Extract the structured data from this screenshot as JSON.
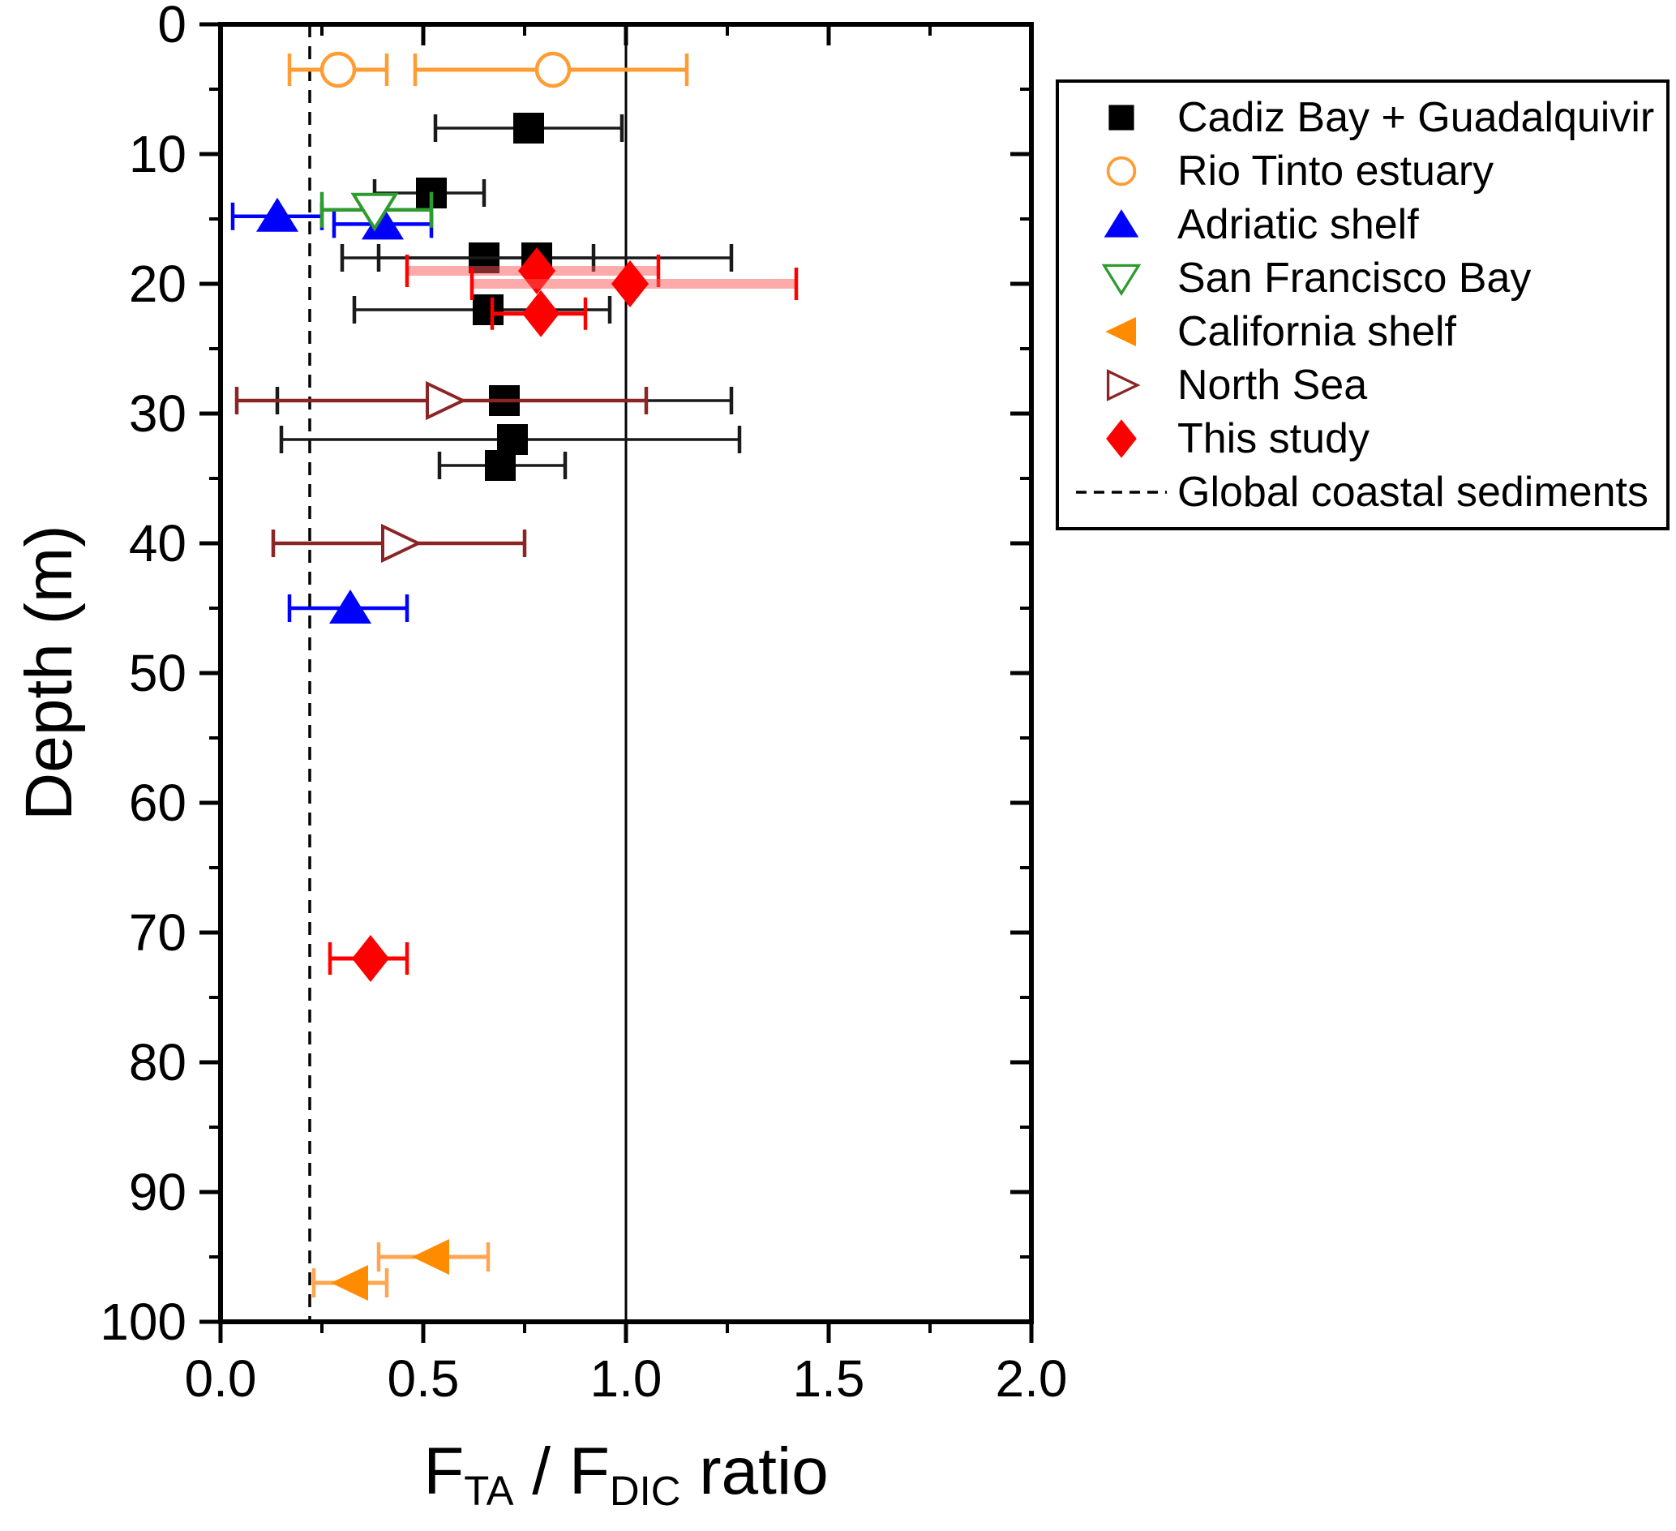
{
  "chart_data": {
    "type": "scatter",
    "title": "",
    "xlabel": "FTA / FDIC ratio",
    "xlabel_parts": [
      {
        "t": "F",
        "sub": false
      },
      {
        "t": "TA",
        "sub": true
      },
      {
        "t": " / F",
        "sub": false
      },
      {
        "t": "DIC",
        "sub": true
      },
      {
        "t": "  ratio",
        "sub": false
      }
    ],
    "ylabel": "Depth (m)",
    "xlim": [
      0.0,
      2.0
    ],
    "ylim": [
      0,
      100
    ],
    "y_inverted": true,
    "grid": false,
    "legend_position": "outside-top-right",
    "x_axis": {
      "ticks": [
        {
          "v": 0.0,
          "label": "0.0"
        },
        {
          "v": 0.5,
          "label": "0.5"
        },
        {
          "v": 1.0,
          "label": "1.0"
        },
        {
          "v": 1.5,
          "label": "1.5"
        },
        {
          "v": 2.0,
          "label": "2.0"
        }
      ],
      "minor_ticks": [
        0.25,
        0.75,
        1.25,
        1.75
      ]
    },
    "y_axis": {
      "ticks": [
        {
          "v": 0,
          "label": "0"
        },
        {
          "v": 10,
          "label": "10"
        },
        {
          "v": 20,
          "label": "20"
        },
        {
          "v": 30,
          "label": "30"
        },
        {
          "v": 40,
          "label": "40"
        },
        {
          "v": 50,
          "label": "50"
        },
        {
          "v": 60,
          "label": "60"
        },
        {
          "v": 70,
          "label": "70"
        },
        {
          "v": 80,
          "label": "80"
        },
        {
          "v": 90,
          "label": "90"
        },
        {
          "v": 100,
          "label": "100"
        }
      ],
      "minor_ticks": [
        5,
        15,
        25,
        35,
        45,
        55,
        65,
        75,
        85,
        95
      ]
    },
    "reference_lines": [
      {
        "x": 1.0,
        "style": "solid",
        "color": "#000000",
        "name": ""
      },
      {
        "x": 0.22,
        "style": "dashed",
        "color": "#000000",
        "name": "Global coastal sediments"
      }
    ],
    "series": [
      {
        "name": "Cadiz Bay + Guadalquivir",
        "marker": "square",
        "color": "#000000",
        "error_color": "#1a1a1a",
        "error_width": 3.5,
        "cap_half": 17,
        "points": [
          {
            "depth": 8,
            "ratio": 0.76,
            "lo": 0.53,
            "hi": 0.99
          },
          {
            "depth": 13,
            "ratio": 0.52,
            "lo": 0.38,
            "hi": 0.65
          },
          {
            "depth": 18,
            "ratio": 0.65,
            "lo": 0.39,
            "hi": 0.92
          },
          {
            "depth": 18,
            "ratio": 0.78,
            "lo": 0.3,
            "hi": 1.26
          },
          {
            "depth": 22,
            "ratio": 0.66,
            "lo": 0.33,
            "hi": 0.96
          },
          {
            "depth": 29,
            "ratio": 0.7,
            "lo": 0.14,
            "hi": 1.26
          },
          {
            "depth": 32,
            "ratio": 0.72,
            "lo": 0.15,
            "hi": 1.28
          },
          {
            "depth": 34,
            "ratio": 0.69,
            "lo": 0.54,
            "hi": 0.85
          }
        ]
      },
      {
        "name": "Rio Tinto estuary",
        "marker": "circle-open",
        "color": "#FF9C33",
        "error_color": "#FF9C33",
        "error_width": 5,
        "cap_half": 20,
        "points": [
          {
            "depth": 3.5,
            "ratio": 0.29,
            "lo": 0.17,
            "hi": 0.41
          },
          {
            "depth": 3.5,
            "ratio": 0.82,
            "lo": 0.48,
            "hi": 1.15
          }
        ]
      },
      {
        "name": "Adriatic shelf",
        "marker": "triangle-up",
        "color": "#0000FF",
        "error_color": "#0000FF",
        "error_width": 4.5,
        "cap_half": 17,
        "points": [
          {
            "depth": 14.8,
            "ratio": 0.14,
            "lo": 0.03,
            "hi": 0.25
          },
          {
            "depth": 15.4,
            "ratio": 0.4,
            "lo": 0.28,
            "hi": 0.52
          },
          {
            "depth": 45,
            "ratio": 0.32,
            "lo": 0.17,
            "hi": 0.46
          }
        ]
      },
      {
        "name": "San Francisco Bay",
        "marker": "triangle-down-open",
        "color": "#2E9B2E",
        "error_color": "#2E9B2E",
        "error_width": 4.5,
        "cap_half": 22,
        "points": [
          {
            "depth": 14.3,
            "ratio": 0.38,
            "lo": 0.25,
            "hi": 0.52
          }
        ]
      },
      {
        "name": "California shelf",
        "marker": "triangle-left",
        "color": "#FF8C00",
        "error_color": "#FFA54F",
        "error_width": 5,
        "cap_half": 18,
        "points": [
          {
            "depth": 95,
            "ratio": 0.52,
            "lo": 0.39,
            "hi": 0.66
          },
          {
            "depth": 97,
            "ratio": 0.32,
            "lo": 0.23,
            "hi": 0.41
          }
        ]
      },
      {
        "name": "North Sea",
        "marker": "triangle-right-open",
        "color": "#8B2525",
        "error_color": "#8B2525",
        "error_width": 4.5,
        "cap_half": 17,
        "points": [
          {
            "depth": 29,
            "ratio": 0.55,
            "lo": 0.04,
            "hi": 1.05
          },
          {
            "depth": 40,
            "ratio": 0.44,
            "lo": 0.13,
            "hi": 0.75
          }
        ]
      },
      {
        "name": "This study",
        "marker": "diamond",
        "color": "#FF0000",
        "error_color": "#FF0000",
        "error_width": 5,
        "cap_half": 20,
        "points": [
          {
            "depth": 19,
            "ratio": 0.78,
            "lo": 0.46,
            "hi": 1.08,
            "soft": true
          },
          {
            "depth": 20,
            "ratio": 1.01,
            "lo": 0.62,
            "hi": 1.42,
            "soft": true
          },
          {
            "depth": 22.3,
            "ratio": 0.79,
            "lo": 0.67,
            "hi": 0.9
          },
          {
            "depth": 72,
            "ratio": 0.37,
            "lo": 0.27,
            "hi": 0.46
          }
        ]
      }
    ]
  }
}
